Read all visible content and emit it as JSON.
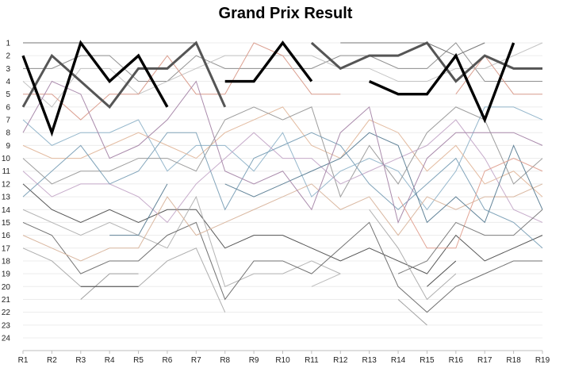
{
  "chart_data": {
    "type": "line",
    "title": "Grand Prix Result",
    "xlabel": "",
    "ylabel": "",
    "categories": [
      "R1",
      "R2",
      "R3",
      "R4",
      "R5",
      "R6",
      "R7",
      "R8",
      "R9",
      "R10",
      "R11",
      "R12",
      "R13",
      "R14",
      "R15",
      "R16",
      "R17",
      "R18",
      "R19"
    ],
    "y_ticks": [
      "1",
      "2",
      "3",
      "4",
      "5",
      "6",
      "7",
      "8",
      "9",
      "10",
      "11",
      "12",
      "13",
      "14",
      "15",
      "16",
      "17",
      "18",
      "19",
      "20",
      "21",
      "22",
      "23",
      "24"
    ],
    "ylim": [
      1,
      24
    ],
    "y_inverted": true,
    "grid": "horizontal",
    "legend": "none",
    "series": [
      {
        "color": "#000000",
        "emphasis": "bold",
        "values": [
          2,
          8,
          1,
          4,
          2,
          6,
          null,
          null,
          null,
          null,
          null,
          null,
          null,
          null,
          null,
          null,
          null,
          null,
          null
        ]
      },
      {
        "color": "#000000",
        "emphasis": "bold",
        "values": [
          null,
          null,
          null,
          null,
          null,
          null,
          null,
          4,
          4,
          1,
          4,
          null,
          null,
          null,
          null,
          null,
          null,
          null,
          null
        ]
      },
      {
        "color": "#000000",
        "emphasis": "bold",
        "values": [
          null,
          null,
          null,
          null,
          null,
          null,
          null,
          null,
          null,
          null,
          null,
          null,
          4,
          5,
          5,
          2,
          7,
          1,
          null
        ]
      },
      {
        "color": "#555555",
        "emphasis": "medium",
        "values": [
          6,
          2,
          4,
          6,
          3,
          3,
          1,
          6,
          null,
          null,
          null,
          null,
          null,
          null,
          null,
          null,
          null,
          null,
          null
        ]
      },
      {
        "color": "#555555",
        "emphasis": "medium",
        "values": [
          null,
          null,
          null,
          null,
          null,
          null,
          null,
          null,
          null,
          null,
          1,
          3,
          2,
          2,
          1,
          4,
          2,
          3,
          3
        ]
      },
      {
        "color": "#6f6f6f",
        "values": [
          1,
          1,
          1,
          1,
          1,
          1,
          1,
          null,
          null,
          null,
          null,
          1,
          1,
          1,
          1,
          2,
          1,
          null,
          null
        ]
      },
      {
        "color": "#8a8a8a",
        "values": [
          3,
          3,
          2,
          2,
          4,
          4,
          2,
          3,
          3,
          3,
          3,
          2,
          2,
          3,
          3,
          1,
          4,
          4,
          4
        ]
      },
      {
        "color": "#c0c0c0",
        "values": [
          4,
          6,
          3,
          3,
          5,
          4,
          3,
          2,
          2,
          2,
          2,
          3,
          3,
          4,
          4,
          3,
          3,
          2,
          1
        ]
      },
      {
        "color": "#d99a8a",
        "values": [
          5,
          5,
          7,
          5,
          5,
          2,
          5,
          5,
          1,
          2,
          5,
          5,
          null,
          null,
          null,
          null,
          null,
          null,
          null
        ]
      },
      {
        "color": "#d99a8a",
        "values": [
          null,
          null,
          null,
          null,
          null,
          null,
          null,
          null,
          null,
          null,
          null,
          null,
          null,
          null,
          null,
          5,
          2,
          5,
          5
        ]
      },
      {
        "color": "#8fb3c9",
        "values": [
          7,
          9,
          8,
          8,
          7,
          11,
          9,
          9,
          11,
          8,
          13,
          11,
          10,
          11,
          14,
          11,
          6,
          6,
          7
        ]
      },
      {
        "color": "#e2b79b",
        "values": [
          9,
          10,
          10,
          9,
          8,
          9,
          10,
          8,
          7,
          6,
          9,
          10,
          7,
          8,
          11,
          9,
          12,
          11,
          13
        ]
      },
      {
        "color": "#999999",
        "values": [
          10,
          12,
          11,
          11,
          10,
          10,
          11,
          7,
          6,
          7,
          6,
          13,
          9,
          12,
          8,
          6,
          7,
          12,
          10
        ]
      },
      {
        "color": "#c4a8c8",
        "values": [
          11,
          13,
          12,
          12,
          13,
          15,
          12,
          10,
          8,
          10,
          10,
          12,
          11,
          10,
          9,
          7,
          10,
          14,
          15
        ]
      },
      {
        "color": "#4d4d4d",
        "values": [
          12,
          14,
          15,
          14,
          15,
          14,
          14,
          17,
          16,
          16,
          17,
          18,
          17,
          18,
          19,
          16,
          18,
          17,
          16
        ]
      },
      {
        "color": "#7a9fb6",
        "values": [
          13,
          11,
          9,
          12,
          11,
          8,
          8,
          14,
          10,
          9,
          8,
          9,
          12,
          14,
          12,
          10,
          14,
          15,
          17
        ]
      },
      {
        "color": "#b0b0b0",
        "values": [
          14,
          15,
          16,
          15,
          16,
          17,
          13,
          20,
          19,
          19,
          18,
          19,
          null,
          null,
          null,
          null,
          null,
          null,
          null
        ]
      },
      {
        "color": "#6a6a6a",
        "values": [
          15,
          16,
          19,
          18,
          18,
          16,
          15,
          21,
          18,
          18,
          19,
          17,
          15,
          20,
          22,
          20,
          19,
          18,
          18
        ]
      },
      {
        "color": "#d8b49c",
        "values": [
          16,
          17,
          18,
          17,
          17,
          13,
          16,
          15,
          14,
          13,
          12,
          14,
          13,
          16,
          13,
          14,
          13,
          13,
          12
        ]
      },
      {
        "color": "#aaaaaa",
        "values": [
          17,
          18,
          20,
          20,
          20,
          18,
          17,
          22,
          null,
          null,
          null,
          null,
          14,
          17,
          21,
          19,
          null,
          null,
          null
        ]
      },
      {
        "color": "#5a7d93",
        "values": [
          null,
          null,
          null,
          16,
          16,
          12,
          null,
          12,
          13,
          12,
          11,
          10,
          8,
          9,
          15,
          13,
          15,
          9,
          14
        ]
      },
      {
        "color": "#9b9b9b",
        "values": [
          null,
          null,
          21,
          19,
          19,
          null,
          null,
          23,
          null,
          null,
          null,
          null,
          null,
          21,
          23,
          null,
          null,
          null,
          null
        ]
      },
      {
        "color": "#444444",
        "values": [
          null,
          null,
          20,
          20,
          20,
          null,
          null,
          24,
          null,
          null,
          null,
          null,
          null,
          null,
          20,
          18,
          null,
          null,
          null
        ]
      },
      {
        "color": "#b8b8b8",
        "values": [
          null,
          null,
          22,
          null,
          null,
          null,
          null,
          null,
          null,
          null,
          20,
          19,
          null,
          null,
          null,
          null,
          null,
          null,
          null
        ]
      },
      {
        "color": "#a585a8",
        "values": [
          8,
          4,
          5,
          10,
          9,
          7,
          4,
          11,
          12,
          11,
          14,
          8,
          6,
          15,
          10,
          8,
          8,
          8,
          9
        ]
      },
      {
        "color": "#e0a090",
        "values": [
          null,
          null,
          null,
          null,
          null,
          null,
          null,
          null,
          null,
          null,
          null,
          null,
          null,
          13,
          17,
          17,
          11,
          10,
          11
        ]
      },
      {
        "color": "#777777",
        "values": [
          null,
          null,
          null,
          null,
          null,
          null,
          null,
          null,
          null,
          null,
          null,
          null,
          null,
          19,
          18,
          15,
          16,
          16,
          14
        ]
      }
    ]
  }
}
